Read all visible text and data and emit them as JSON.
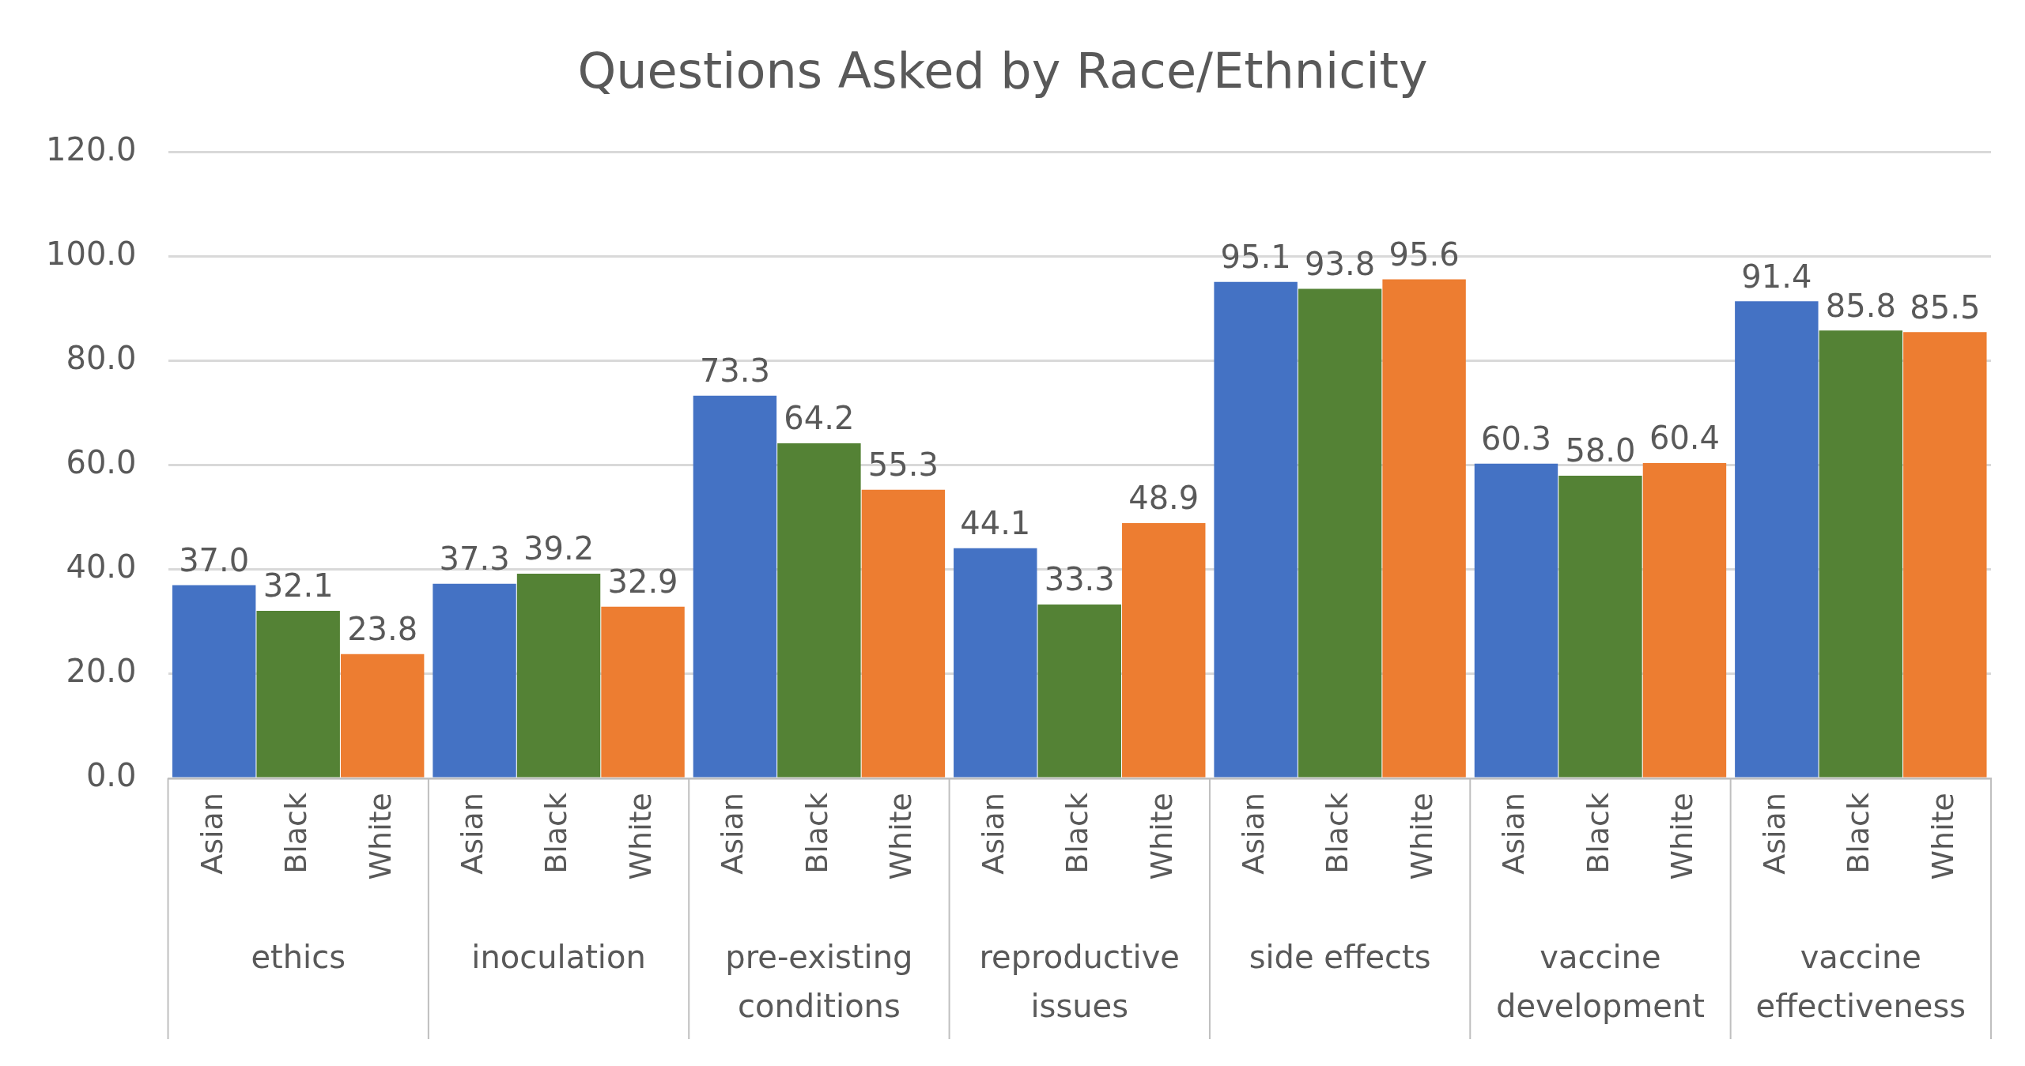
{
  "chart_data": {
    "type": "bar",
    "title": "Questions Asked by Race/Ethnicity",
    "categories": [
      "ethics",
      "inoculation",
      "pre-existing conditions",
      "reproductive issues",
      "side effects",
      "vaccine development",
      "vaccine effectiveness"
    ],
    "series": [
      {
        "name": "Asian",
        "color": "#4472c4",
        "values": [
          37.0,
          37.3,
          73.3,
          44.1,
          95.1,
          60.3,
          91.4
        ],
        "value_labels": [
          "37.0",
          "37.3",
          "73.3",
          "44.1",
          "95.1",
          "60.3",
          "91.4"
        ]
      },
      {
        "name": "Black",
        "color": "#548235",
        "values": [
          32.1,
          39.2,
          64.2,
          33.3,
          93.8,
          58.0,
          85.8
        ],
        "value_labels": [
          "32.1",
          "39.2",
          "64.2",
          "33.3",
          "93.8",
          "58.0",
          "85.8"
        ]
      },
      {
        "name": "White",
        "color": "#ed7d31",
        "values": [
          23.8,
          32.9,
          55.3,
          48.9,
          95.6,
          60.4,
          85.5
        ],
        "value_labels": [
          "23.8",
          "32.9",
          "55.3",
          "48.9",
          "95.6",
          "60.4",
          "85.5"
        ]
      }
    ],
    "ylim": [
      0,
      120
    ],
    "yticks": [
      {
        "value": 0,
        "label": "0.0"
      },
      {
        "value": 20,
        "label": "20.0"
      },
      {
        "value": 40,
        "label": "40.0"
      },
      {
        "value": 60,
        "label": "60.0"
      },
      {
        "value": 80,
        "label": "80.0"
      },
      {
        "value": 100,
        "label": "100.0"
      },
      {
        "value": 120,
        "label": "120.0"
      }
    ],
    "grid": "y",
    "legend": false
  }
}
